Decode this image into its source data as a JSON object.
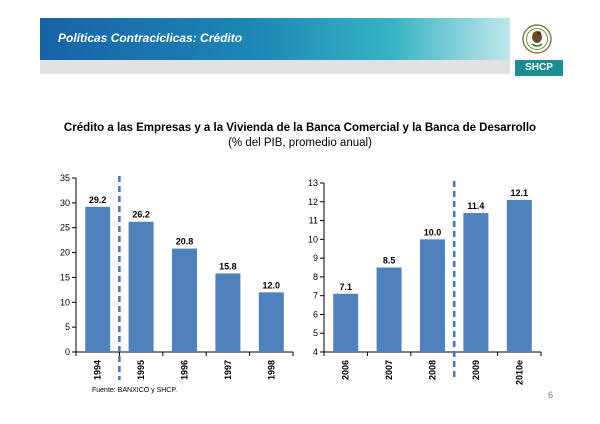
{
  "header": {
    "title": "Políticas Contracíclicas: Crédito",
    "logo_text": "SHCP"
  },
  "colors": {
    "bar": "#4f81bd",
    "divider": "#4472c4",
    "shcp": "#1a8c93"
  },
  "icons": {
    "emblem": "mexican-coat-of-arms-icon"
  },
  "chart_title": "Crédito a las Empresas y a la Vivienda de la Banca Comercial y la Banca de Desarrollo",
  "chart_subtitle": "(% del PIB, promedio anual)",
  "footer": {
    "source": "Fuente: BANXICO y SHCP.",
    "page": "6"
  },
  "chart_data": [
    {
      "type": "bar",
      "categories": [
        "1994",
        "1995",
        "1996",
        "1997",
        "1998"
      ],
      "values": [
        29.2,
        26.2,
        20.8,
        15.8,
        12.0
      ],
      "value_labels": [
        "29.2",
        "26.2",
        "20.8",
        "15.8",
        "12.0"
      ],
      "ylim": [
        0,
        35
      ],
      "yticks": [
        0,
        5,
        10,
        15,
        20,
        25,
        30,
        35
      ],
      "divider_after_index": 0,
      "grid": false
    },
    {
      "type": "bar",
      "categories": [
        "2006",
        "2007",
        "2008",
        "2009",
        "2010e"
      ],
      "values": [
        7.1,
        8.5,
        10.0,
        11.4,
        12.1
      ],
      "value_labels": [
        "7.1",
        "8.5",
        "10.0",
        "11.4",
        "12.1"
      ],
      "ylim": [
        4,
        13
      ],
      "yticks": [
        4,
        5,
        6,
        7,
        8,
        9,
        10,
        11,
        12,
        13
      ],
      "divider_after_index": 2,
      "grid": false
    }
  ]
}
